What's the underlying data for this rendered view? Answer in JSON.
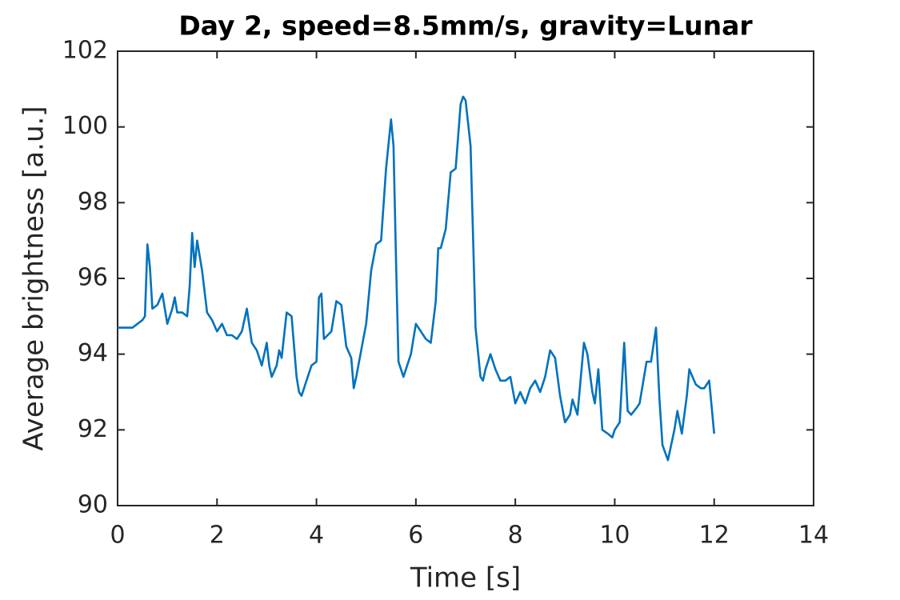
{
  "chart_data": {
    "type": "line",
    "title": "Day 2, speed=8.5mm/s, gravity=Lunar",
    "x_label": "Time [s]",
    "y_label": "Average brightness [a.u.]",
    "xlim": [
      0,
      14
    ],
    "xticks": [
      0,
      2,
      4,
      6,
      8,
      10,
      12,
      14
    ],
    "ylim": [
      90,
      102
    ],
    "yticks": [
      90,
      92,
      94,
      96,
      98,
      100,
      102
    ],
    "grid": false,
    "x": [
      0,
      0.1,
      0.2,
      0.3,
      0.4,
      0.5,
      0.55,
      0.6,
      0.65,
      0.7,
      0.8,
      0.9,
      1.0,
      1.1,
      1.15,
      1.2,
      1.3,
      1.4,
      1.45,
      1.5,
      1.55,
      1.6,
      1.7,
      1.8,
      1.9,
      2.0,
      2.1,
      2.2,
      2.3,
      2.4,
      2.5,
      2.6,
      2.7,
      2.8,
      2.9,
      3.0,
      3.05,
      3.1,
      3.2,
      3.25,
      3.3,
      3.4,
      3.5,
      3.6,
      3.65,
      3.7,
      3.8,
      3.9,
      4.0,
      4.05,
      4.1,
      4.15,
      4.3,
      4.4,
      4.5,
      4.6,
      4.7,
      4.75,
      4.8,
      4.9,
      5.0,
      5.1,
      5.2,
      5.3,
      5.4,
      5.5,
      5.55,
      5.6,
      5.65,
      5.75,
      5.9,
      6.0,
      6.1,
      6.2,
      6.3,
      6.4,
      6.45,
      6.5,
      6.6,
      6.7,
      6.8,
      6.9,
      6.95,
      7.0,
      7.1,
      7.2,
      7.3,
      7.35,
      7.4,
      7.5,
      7.6,
      7.7,
      7.8,
      7.9,
      8.0,
      8.1,
      8.2,
      8.3,
      8.4,
      8.5,
      8.6,
      8.7,
      8.8,
      8.9,
      9.0,
      9.1,
      9.15,
      9.25,
      9.38,
      9.45,
      9.55,
      9.6,
      9.67,
      9.75,
      9.86,
      9.95,
      10.0,
      10.1,
      10.19,
      10.26,
      10.33,
      10.45,
      10.5,
      10.64,
      10.73,
      10.83,
      10.9,
      10.96,
      11.07,
      11.2,
      11.26,
      11.35,
      11.45,
      11.5,
      11.63,
      11.73,
      11.8,
      11.9,
      12.0
    ],
    "series": [
      {
        "color": "#0072bd",
        "values": [
          94.7,
          94.7,
          94.7,
          94.7,
          94.8,
          94.9,
          95.0,
          96.9,
          96.3,
          95.2,
          95.3,
          95.6,
          94.8,
          95.2,
          95.5,
          95.1,
          95.1,
          95.0,
          95.8,
          97.2,
          96.3,
          97.0,
          96.2,
          95.1,
          94.9,
          94.6,
          94.8,
          94.5,
          94.5,
          94.4,
          94.6,
          95.2,
          94.3,
          94.1,
          93.7,
          94.3,
          93.7,
          93.4,
          93.7,
          94.1,
          93.9,
          95.1,
          95.0,
          93.4,
          93.0,
          92.9,
          93.3,
          93.7,
          93.8,
          95.5,
          95.6,
          94.4,
          94.6,
          95.4,
          95.3,
          94.2,
          93.9,
          93.1,
          93.4,
          94.1,
          94.8,
          96.2,
          96.9,
          97.0,
          98.9,
          100.2,
          99.5,
          96.5,
          93.8,
          93.4,
          94.0,
          94.8,
          94.6,
          94.4,
          94.3,
          95.4,
          96.8,
          96.8,
          97.3,
          98.8,
          98.9,
          100.6,
          100.8,
          100.7,
          99.5,
          94.7,
          93.4,
          93.3,
          93.6,
          94.0,
          93.6,
          93.3,
          93.3,
          93.4,
          92.7,
          93.0,
          92.7,
          93.1,
          93.3,
          93.0,
          93.4,
          94.1,
          93.9,
          92.9,
          92.2,
          92.4,
          92.8,
          92.4,
          94.3,
          94.0,
          93.0,
          92.7,
          93.6,
          92.0,
          91.9,
          91.8,
          92.0,
          92.2,
          94.3,
          92.5,
          92.4,
          92.6,
          92.7,
          93.8,
          93.8,
          94.7,
          92.8,
          91.6,
          91.2,
          92.0,
          92.5,
          91.9,
          92.9,
          93.6,
          93.2,
          93.1,
          93.1,
          93.3,
          91.9
        ]
      }
    ]
  }
}
